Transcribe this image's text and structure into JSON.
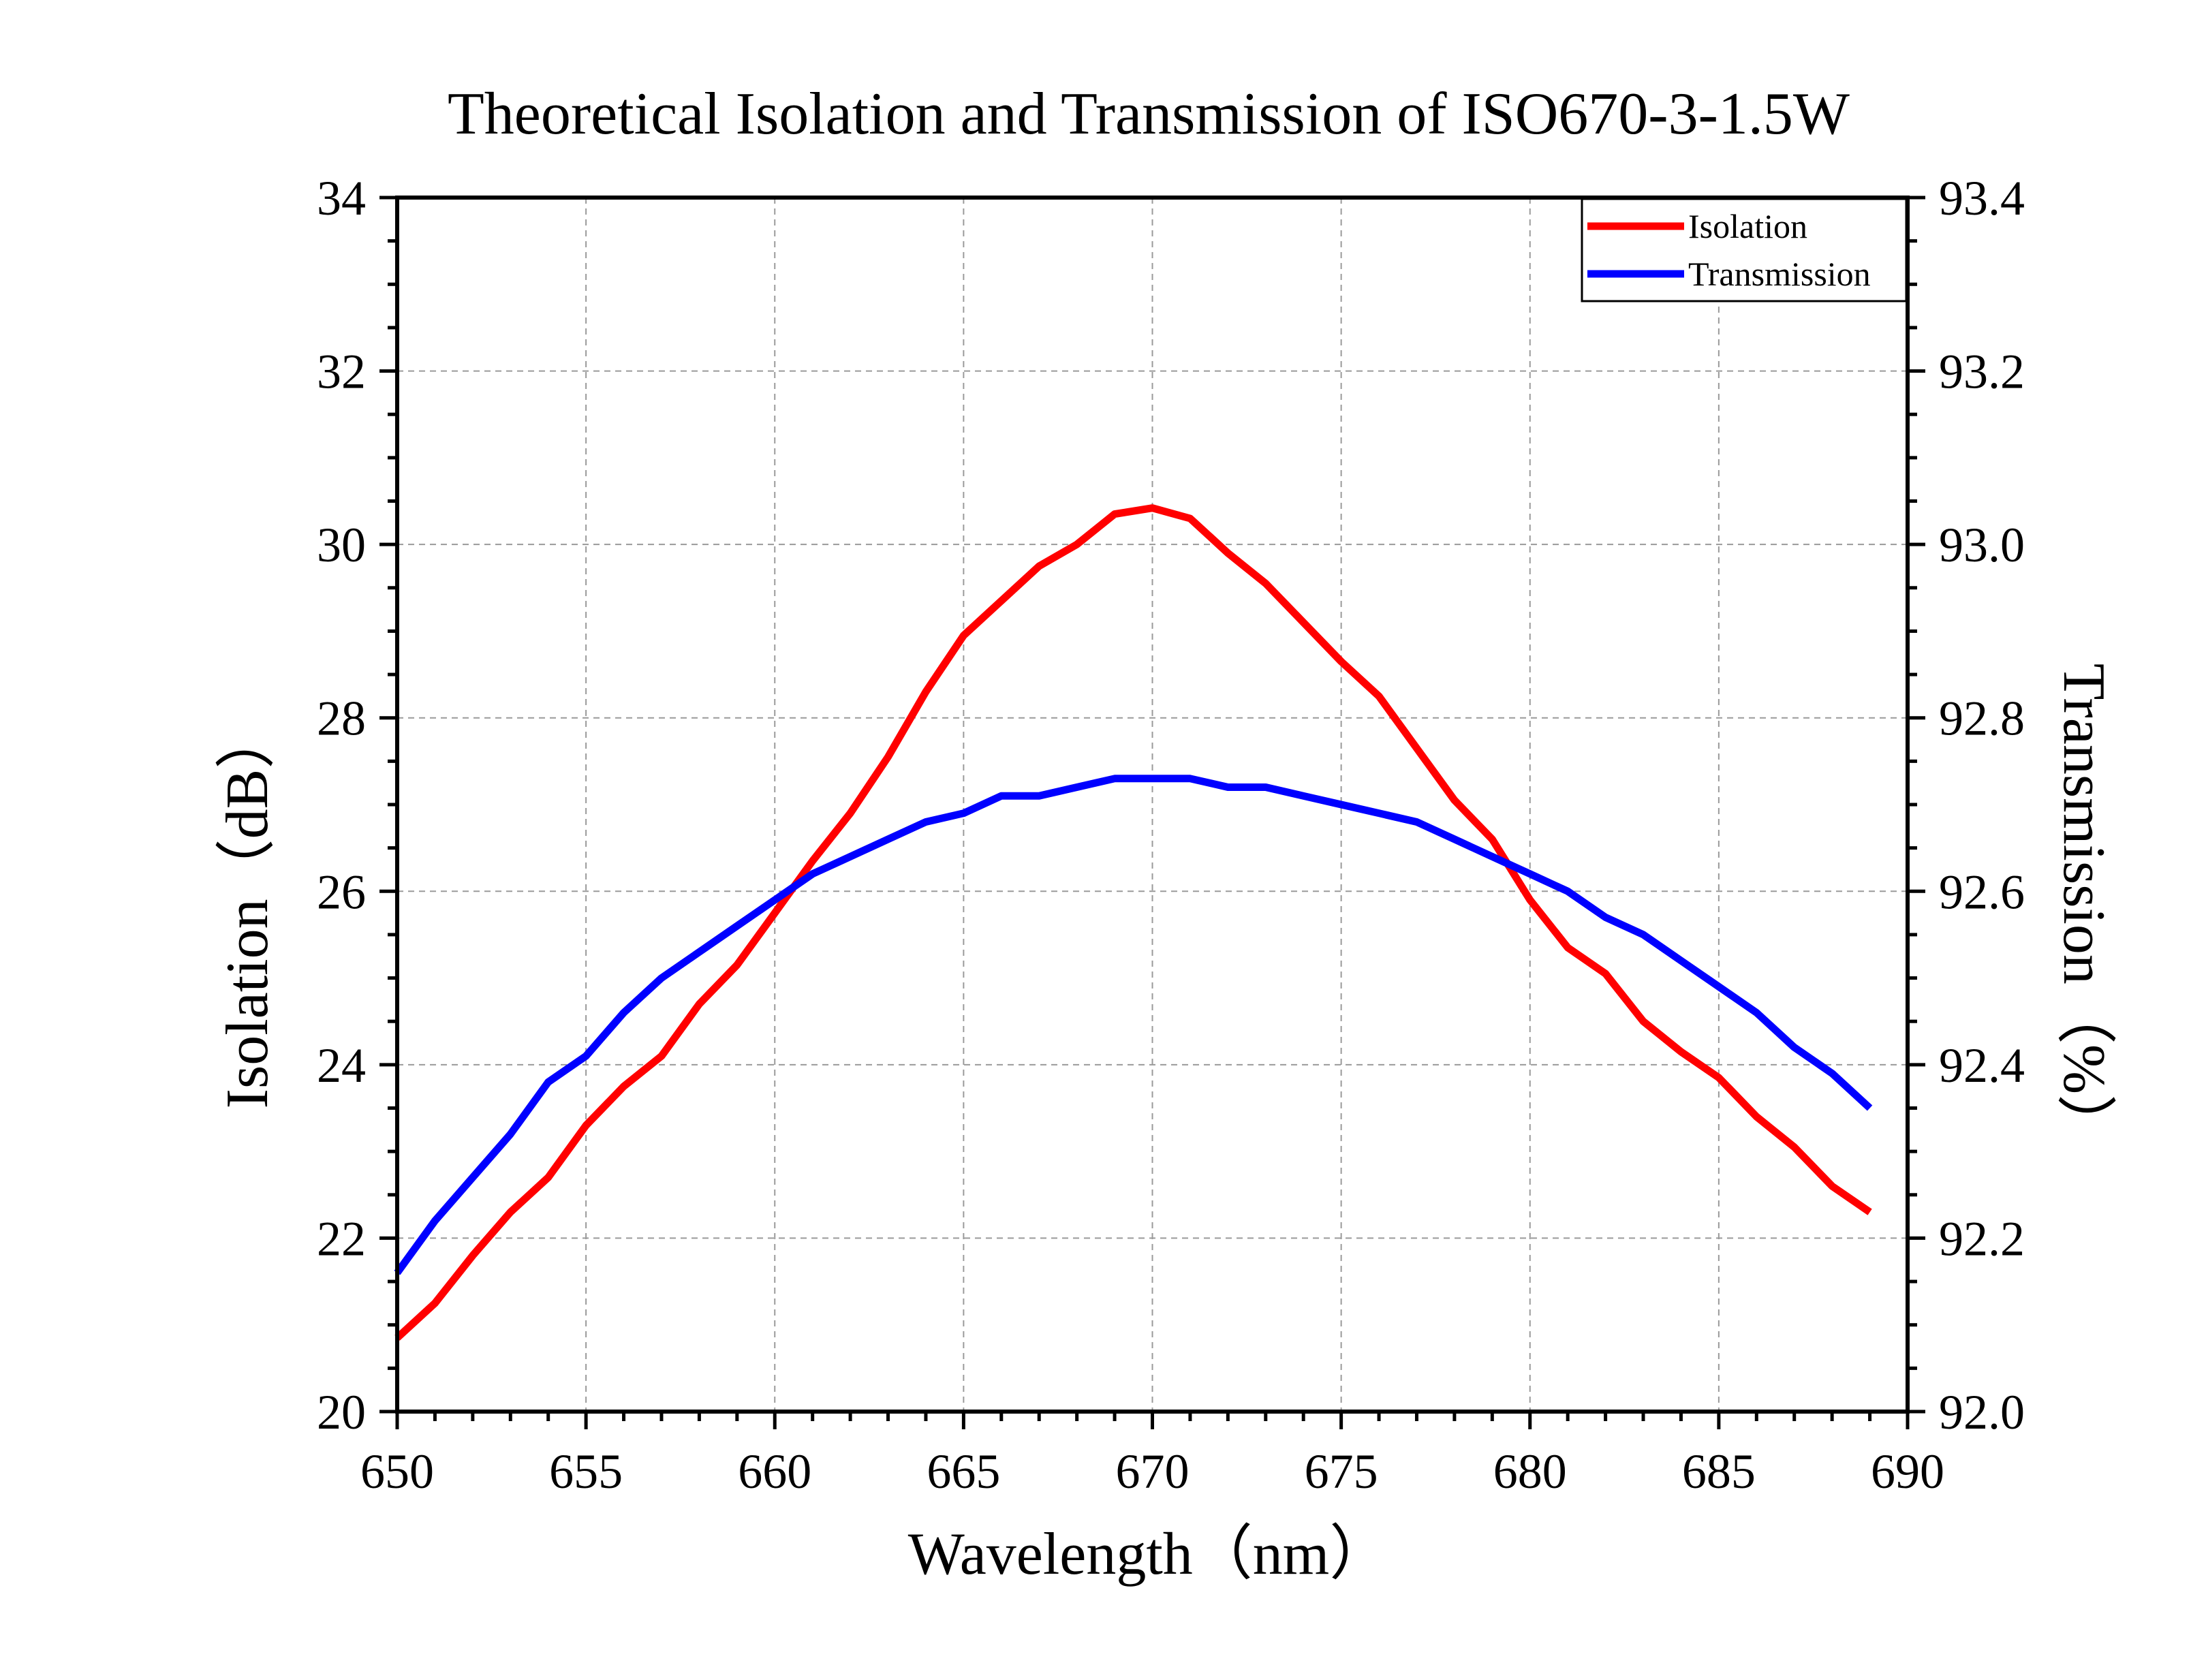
{
  "chart_data": {
    "type": "line",
    "title": "Theoretical Isolation and Transmission of ISO670-3-1.5W",
    "xlabel": "Wavelength（nm）",
    "ylabel": "Isolation（dB）",
    "y2label": "Transmission（%）",
    "xlim": [
      650,
      690
    ],
    "ylim": [
      20,
      34
    ],
    "y2lim": [
      92.0,
      93.4
    ],
    "x_ticks": [
      "650",
      "655",
      "660",
      "665",
      "670",
      "675",
      "680",
      "685",
      "690"
    ],
    "y_ticks": [
      "20",
      "22",
      "24",
      "26",
      "28",
      "30",
      "32",
      "34"
    ],
    "y2_ticks": [
      "92.0",
      "92.2",
      "92.4",
      "92.6",
      "92.8",
      "93.0",
      "93.2",
      "93.4"
    ],
    "grid": true,
    "legend_position": "top-right",
    "x": [
      650,
      651,
      652,
      653,
      654,
      655,
      656,
      657,
      658,
      659,
      660,
      661,
      662,
      663,
      664,
      665,
      666,
      667,
      668,
      669,
      670,
      671,
      672,
      673,
      674,
      675,
      676,
      677,
      678,
      679,
      680,
      681,
      682,
      683,
      684,
      685,
      686,
      687,
      688,
      689
    ],
    "series": [
      {
        "name": "Isolation",
        "axis": "left",
        "color": "#ff0000",
        "values": [
          20.85,
          21.25,
          21.8,
          22.3,
          22.7,
          23.3,
          23.75,
          24.1,
          24.7,
          25.15,
          25.75,
          26.35,
          26.9,
          27.55,
          28.3,
          28.95,
          29.35,
          29.75,
          30.0,
          30.35,
          30.42,
          30.3,
          29.9,
          29.55,
          29.1,
          28.65,
          28.25,
          27.65,
          27.05,
          26.6,
          25.9,
          25.35,
          25.05,
          24.5,
          24.15,
          23.85,
          23.4,
          23.05,
          22.6,
          22.3
        ]
      },
      {
        "name": "Transmission",
        "axis": "right",
        "color": "#0000ff",
        "values": [
          92.16,
          92.22,
          92.27,
          92.32,
          92.38,
          92.41,
          92.46,
          92.5,
          92.53,
          92.56,
          92.59,
          92.62,
          92.64,
          92.66,
          92.68,
          92.69,
          92.71,
          92.71,
          92.72,
          92.73,
          92.73,
          92.73,
          92.72,
          92.72,
          92.71,
          92.7,
          92.69,
          92.68,
          92.66,
          92.64,
          92.62,
          92.6,
          92.57,
          92.55,
          92.52,
          92.49,
          92.46,
          92.42,
          92.39,
          92.35
        ]
      }
    ]
  }
}
